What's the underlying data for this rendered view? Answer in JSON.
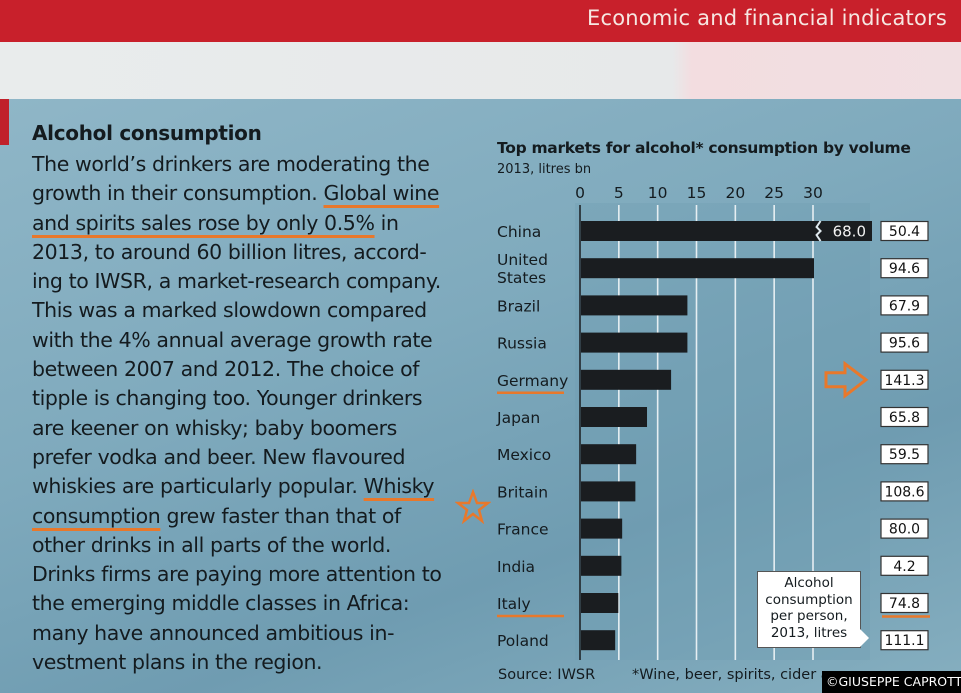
{
  "header": {
    "section_title": "Economic and financial indicators"
  },
  "article": {
    "title": "Alcohol consumption",
    "lines": [
      [
        {
          "t": "The world’s drinkers are moderating the"
        }
      ],
      [
        {
          "t": "growth in their consumption. "
        },
        {
          "t": "Global wine",
          "u": true
        }
      ],
      [
        {
          "t": "and spirits sales rose by only 0.5%",
          "u": true
        },
        {
          "t": " in"
        }
      ],
      [
        {
          "t": "2013, to around 60 billion litres, accord-"
        }
      ],
      [
        {
          "t": "ing to IWSR, a market-research company."
        }
      ],
      [
        {
          "t": "This was a marked slowdown compared"
        }
      ],
      [
        {
          "t": "with the 4% annual average growth rate"
        }
      ],
      [
        {
          "t": "between 2007 and 2012. The choice of"
        }
      ],
      [
        {
          "t": "tipple is changing too. Younger drinkers"
        }
      ],
      [
        {
          "t": "are keener on whisky; baby boomers"
        }
      ],
      [
        {
          "t": "prefer vodka and beer. New flavoured"
        }
      ],
      [
        {
          "t": "whiskies are particularly popular. "
        },
        {
          "t": "Whisky",
          "u": true
        }
      ],
      [
        {
          "t": "consumption",
          "u": true
        },
        {
          "t": " grew faster than that of"
        }
      ],
      [
        {
          "t": "other drinks in all parts of the world."
        }
      ],
      [
        {
          "t": "Drinks firms are paying more attention to"
        }
      ],
      [
        {
          "t": "the emerging middle classes in Africa:"
        }
      ],
      [
        {
          "t": "many have announced ambitious in-"
        }
      ],
      [
        {
          "t": "vestment plans in the region."
        }
      ]
    ]
  },
  "annotations": {
    "highlight_color": "#e8782b",
    "star_icon": "star-outline",
    "arrow_icon": "arrow-right-outline",
    "arrow_target": "Germany",
    "underlined_categories": [
      "Germany",
      "Italy"
    ]
  },
  "chart_data": {
    "type": "bar",
    "orientation": "horizontal",
    "title": "Top markets for alcohol* consumption by volume",
    "subtitle": "2013, litres bn",
    "xlabel": "",
    "ylabel": "",
    "xlim": [
      0,
      30
    ],
    "xticks": [
      0,
      5,
      10,
      15,
      20,
      25,
      30
    ],
    "grid": true,
    "categories": [
      "China",
      "United States",
      "Brazil",
      "Russia",
      "Germany",
      "Japan",
      "Mexico",
      "Britain",
      "France",
      "India",
      "Italy",
      "Poland"
    ],
    "series": [
      {
        "name": "Consumption by volume, litres bn",
        "values": [
          68.0,
          30.0,
          13.7,
          13.7,
          11.6,
          8.5,
          7.1,
          7.0,
          5.3,
          5.2,
          4.8,
          4.4
        ],
        "truncated": {
          "China": "68.0"
        }
      },
      {
        "name": "Alcohol consumption per person, 2013, litres",
        "values": [
          50.4,
          94.6,
          67.9,
          95.6,
          141.3,
          65.8,
          59.5,
          108.6,
          80.0,
          4.2,
          74.8,
          111.1
        ],
        "labels": [
          "50.4",
          "94.6",
          "67.9",
          "95.6",
          "141.3",
          "65.8",
          "59.5",
          "108.6",
          "80.0",
          "4.2",
          "74.8",
          "111.1"
        ]
      }
    ],
    "callout": "Alcohol consumption per person, 2013, litres",
    "callout_lines": [
      "Alcohol",
      "consumption",
      "per person,",
      "2013, litres"
    ],
    "source": "Source: IWSR",
    "footnote": "*Wine, beer, spirits, cider and mixed drinks",
    "footnote_visible": "*Wine, beer, spirits, cider a",
    "colors": {
      "bar": "#1a1d20",
      "background": "#7fa8bb",
      "gridline": "#e6eef2",
      "value_box": "#ffffff"
    }
  },
  "watermark": "©GIUSEPPE CAPROTTI"
}
